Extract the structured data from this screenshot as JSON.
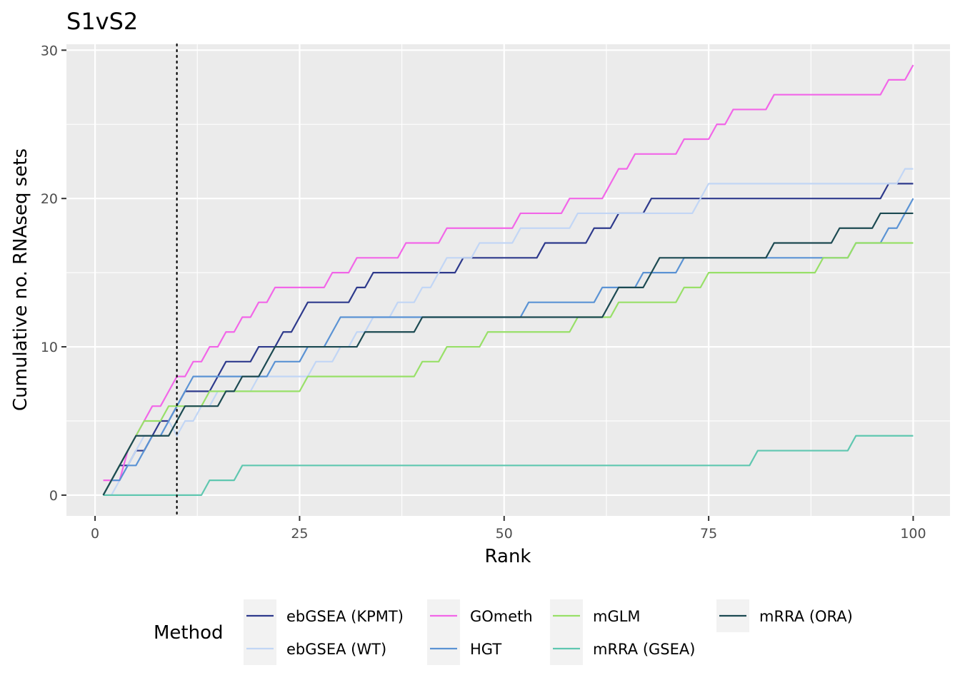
{
  "chart_data": {
    "type": "line",
    "title": "S1vS2",
    "xlabel": "Rank",
    "ylabel": "Cumulative no. RNAseq sets",
    "xlim": [
      -3.5,
      104.5
    ],
    "ylim": [
      -1.4,
      30.4
    ],
    "x_ticks": [
      0,
      25,
      50,
      75,
      100
    ],
    "y_ticks": [
      0,
      10,
      20,
      30
    ],
    "grid": true,
    "vline": {
      "x": 10,
      "style": "dotted"
    },
    "legend": {
      "title": "Method",
      "position": "bottom"
    },
    "x": [
      1,
      2,
      3,
      4,
      5,
      6,
      7,
      8,
      9,
      10,
      11,
      12,
      13,
      14,
      15,
      16,
      17,
      18,
      19,
      20,
      21,
      22,
      23,
      24,
      25,
      26,
      27,
      28,
      29,
      30,
      31,
      32,
      33,
      34,
      35,
      36,
      37,
      38,
      39,
      40,
      41,
      42,
      43,
      44,
      45,
      46,
      47,
      48,
      49,
      50,
      51,
      52,
      53,
      54,
      55,
      56,
      57,
      58,
      59,
      60,
      61,
      62,
      63,
      64,
      65,
      66,
      67,
      68,
      69,
      70,
      71,
      72,
      73,
      74,
      75,
      76,
      77,
      78,
      79,
      80,
      81,
      82,
      83,
      84,
      85,
      86,
      87,
      88,
      89,
      90,
      91,
      92,
      93,
      94,
      95,
      96,
      97,
      98,
      99,
      100
    ],
    "series": [
      {
        "name": "ebGSEA (KPMT)",
        "color": "#2e3a8c",
        "values": [
          0,
          1,
          2,
          2,
          3,
          3,
          4,
          5,
          5,
          6,
          7,
          7,
          7,
          7,
          8,
          9,
          9,
          9,
          9,
          10,
          10,
          10,
          11,
          11,
          12,
          13,
          13,
          13,
          13,
          13,
          13,
          14,
          14,
          15,
          15,
          15,
          15,
          15,
          15,
          15,
          15,
          15,
          15,
          15,
          16,
          16,
          16,
          16,
          16,
          16,
          16,
          16,
          16,
          16,
          17,
          17,
          17,
          17,
          17,
          17,
          18,
          18,
          18,
          19,
          19,
          19,
          19,
          20,
          20,
          20,
          20,
          20,
          20,
          20,
          20,
          20,
          20,
          20,
          20,
          20,
          20,
          20,
          20,
          20,
          20,
          20,
          20,
          20,
          20,
          20,
          20,
          20,
          20,
          20,
          20,
          20,
          21,
          21,
          21,
          21
        ]
      },
      {
        "name": "ebGSEA (WT)",
        "color": "#c2d6f5",
        "values": [
          0,
          0,
          1,
          2,
          3,
          4,
          4,
          4,
          5,
          4,
          5,
          5,
          6,
          6,
          7,
          7,
          7,
          7,
          7,
          8,
          8,
          8,
          8,
          8,
          8,
          8,
          9,
          9,
          9,
          10,
          10,
          11,
          11,
          12,
          12,
          12,
          13,
          13,
          13,
          14,
          14,
          15,
          16,
          16,
          16,
          16,
          17,
          17,
          17,
          17,
          17,
          18,
          18,
          18,
          18,
          18,
          18,
          18,
          19,
          19,
          19,
          19,
          19,
          19,
          19,
          19,
          19,
          19,
          19,
          19,
          19,
          19,
          19,
          20,
          21,
          21,
          21,
          21,
          21,
          21,
          21,
          21,
          21,
          21,
          21,
          21,
          21,
          21,
          21,
          21,
          21,
          21,
          21,
          21,
          21,
          21,
          21,
          21,
          22,
          22
        ]
      },
      {
        "name": "GOmeth",
        "color": "#f266e8",
        "values": [
          1,
          1,
          1,
          3,
          4,
          5,
          6,
          6,
          7,
          8,
          8,
          9,
          9,
          10,
          10,
          11,
          11,
          12,
          12,
          13,
          13,
          14,
          14,
          14,
          14,
          14,
          14,
          14,
          15,
          15,
          15,
          16,
          16,
          16,
          16,
          16,
          16,
          17,
          17,
          17,
          17,
          17,
          18,
          18,
          18,
          18,
          18,
          18,
          18,
          18,
          18,
          19,
          19,
          19,
          19,
          19,
          19,
          20,
          20,
          20,
          20,
          20,
          21,
          22,
          22,
          23,
          23,
          23,
          23,
          23,
          23,
          24,
          24,
          24,
          24,
          25,
          25,
          26,
          26,
          26,
          26,
          26,
          27,
          27,
          27,
          27,
          27,
          27,
          27,
          27,
          27,
          27,
          27,
          27,
          27,
          27,
          28,
          28,
          28,
          29
        ]
      },
      {
        "name": "HGT",
        "color": "#5b93d4",
        "values": [
          0,
          1,
          1,
          2,
          2,
          3,
          4,
          4,
          5,
          6,
          7,
          8,
          8,
          8,
          8,
          8,
          8,
          8,
          8,
          8,
          8,
          9,
          9,
          9,
          9,
          10,
          10,
          10,
          11,
          12,
          12,
          12,
          12,
          12,
          12,
          12,
          12,
          12,
          12,
          12,
          12,
          12,
          12,
          12,
          12,
          12,
          12,
          12,
          12,
          12,
          12,
          12,
          13,
          13,
          13,
          13,
          13,
          13,
          13,
          13,
          13,
          14,
          14,
          14,
          14,
          14,
          15,
          15,
          15,
          15,
          15,
          16,
          16,
          16,
          16,
          16,
          16,
          16,
          16,
          16,
          16,
          16,
          16,
          16,
          16,
          16,
          16,
          16,
          16,
          16,
          16,
          16,
          17,
          17,
          17,
          17,
          18,
          18,
          19,
          20
        ]
      },
      {
        "name": "mGLM",
        "color": "#98e068",
        "values": [
          0,
          1,
          2,
          3,
          4,
          5,
          5,
          5,
          6,
          6,
          6,
          6,
          6,
          7,
          7,
          7,
          7,
          7,
          7,
          7,
          7,
          7,
          7,
          7,
          7,
          8,
          8,
          8,
          8,
          8,
          8,
          8,
          8,
          8,
          8,
          8,
          8,
          8,
          8,
          9,
          9,
          9,
          10,
          10,
          10,
          10,
          10,
          11,
          11,
          11,
          11,
          11,
          11,
          11,
          11,
          11,
          11,
          11,
          12,
          12,
          12,
          12,
          12,
          13,
          13,
          13,
          13,
          13,
          13,
          13,
          13,
          14,
          14,
          14,
          15,
          15,
          15,
          15,
          15,
          15,
          15,
          15,
          15,
          15,
          15,
          15,
          15,
          15,
          16,
          16,
          16,
          16,
          17,
          17,
          17,
          17,
          17,
          17,
          17,
          17
        ]
      },
      {
        "name": "mRRA (GSEA)",
        "color": "#5fc7b0",
        "values": [
          0,
          0,
          0,
          0,
          0,
          0,
          0,
          0,
          0,
          0,
          0,
          0,
          0,
          1,
          1,
          1,
          1,
          2,
          2,
          2,
          2,
          2,
          2,
          2,
          2,
          2,
          2,
          2,
          2,
          2,
          2,
          2,
          2,
          2,
          2,
          2,
          2,
          2,
          2,
          2,
          2,
          2,
          2,
          2,
          2,
          2,
          2,
          2,
          2,
          2,
          2,
          2,
          2,
          2,
          2,
          2,
          2,
          2,
          2,
          2,
          2,
          2,
          2,
          2,
          2,
          2,
          2,
          2,
          2,
          2,
          2,
          2,
          2,
          2,
          2,
          2,
          2,
          2,
          2,
          2,
          3,
          3,
          3,
          3,
          3,
          3,
          3,
          3,
          3,
          3,
          3,
          3,
          4,
          4,
          4,
          4,
          4,
          4,
          4,
          4
        ]
      },
      {
        "name": "mRRA (ORA)",
        "color": "#1c4a52",
        "values": [
          0,
          1,
          2,
          3,
          4,
          4,
          4,
          4,
          4,
          5,
          6,
          6,
          6,
          6,
          6,
          7,
          7,
          8,
          8,
          8,
          9,
          10,
          10,
          10,
          10,
          10,
          10,
          10,
          10,
          10,
          10,
          10,
          11,
          11,
          11,
          11,
          11,
          11,
          11,
          12,
          12,
          12,
          12,
          12,
          12,
          12,
          12,
          12,
          12,
          12,
          12,
          12,
          12,
          12,
          12,
          12,
          12,
          12,
          12,
          12,
          12,
          12,
          13,
          14,
          14,
          14,
          14,
          15,
          16,
          16,
          16,
          16,
          16,
          16,
          16,
          16,
          16,
          16,
          16,
          16,
          16,
          16,
          17,
          17,
          17,
          17,
          17,
          17,
          17,
          17,
          18,
          18,
          18,
          18,
          18,
          19,
          19,
          19,
          19,
          19
        ]
      }
    ]
  }
}
